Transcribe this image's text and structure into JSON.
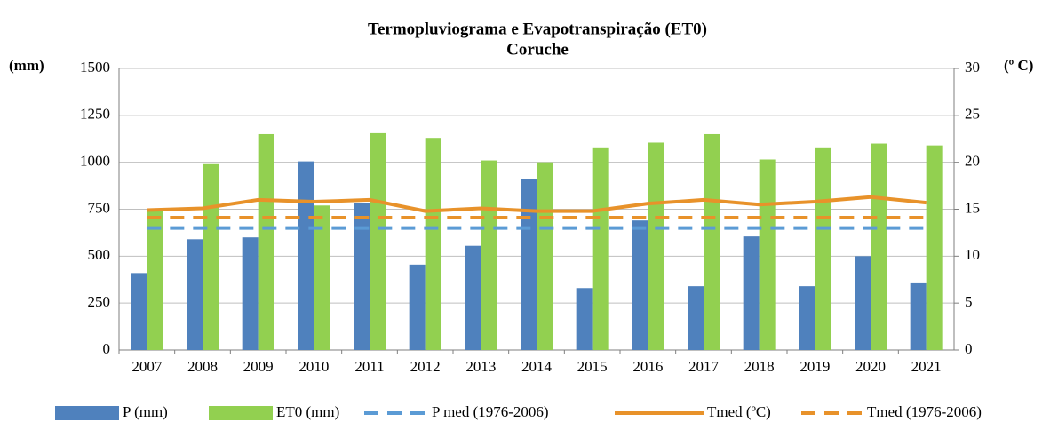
{
  "chart_data": {
    "type": "combo",
    "title": "Termopluviograma e Evapotranspiração (ET0)",
    "subtitle": "Coruche",
    "y_label": "(mm)",
    "y2_label": "(º C)",
    "categories": [
      "2007",
      "2008",
      "2009",
      "2010",
      "2011",
      "2012",
      "2013",
      "2014",
      "2015",
      "2016",
      "2017",
      "2018",
      "2019",
      "2020",
      "2021"
    ],
    "ylim": [
      0,
      1500
    ],
    "yticks": [
      0,
      250,
      500,
      750,
      1000,
      1250,
      1500
    ],
    "y2lim": [
      0,
      30
    ],
    "y2ticks": [
      0,
      5,
      10,
      15,
      20,
      25,
      30
    ],
    "grid": true,
    "series": [
      {
        "name": "P (mm)",
        "type": "bar",
        "color": "#4f81bd",
        "values": [
          410,
          590,
          600,
          1005,
          785,
          455,
          555,
          910,
          330,
          690,
          340,
          605,
          340,
          500,
          360
        ]
      },
      {
        "name": "ET0 (mm)",
        "type": "bar",
        "color": "#92d050",
        "values": [
          740,
          990,
          1150,
          770,
          1155,
          1130,
          1010,
          1000,
          1075,
          1105,
          1150,
          1015,
          1075,
          1100,
          1090
        ]
      },
      {
        "name": "P med (1976-2006)",
        "type": "line",
        "dashed": true,
        "color": "#5b9bd5",
        "values": [
          650,
          650,
          650,
          650,
          650,
          650,
          650,
          650,
          650,
          650,
          650,
          650,
          650,
          650,
          650
        ]
      },
      {
        "name": "Tmed (ºC)",
        "type": "line",
        "dashed": false,
        "axis": "y2",
        "color": "#e8922a",
        "values": [
          14.9,
          15.1,
          16.0,
          15.8,
          16.0,
          14.8,
          15.1,
          14.8,
          14.8,
          15.6,
          16.0,
          15.5,
          15.8,
          16.3,
          15.7
        ]
      },
      {
        "name": "Tmed (1976-2006)",
        "type": "line",
        "dashed": true,
        "axis": "y2",
        "color": "#e8922a",
        "values": [
          14.1,
          14.1,
          14.1,
          14.1,
          14.1,
          14.1,
          14.1,
          14.1,
          14.1,
          14.1,
          14.1,
          14.1,
          14.1,
          14.1,
          14.1
        ]
      }
    ]
  }
}
